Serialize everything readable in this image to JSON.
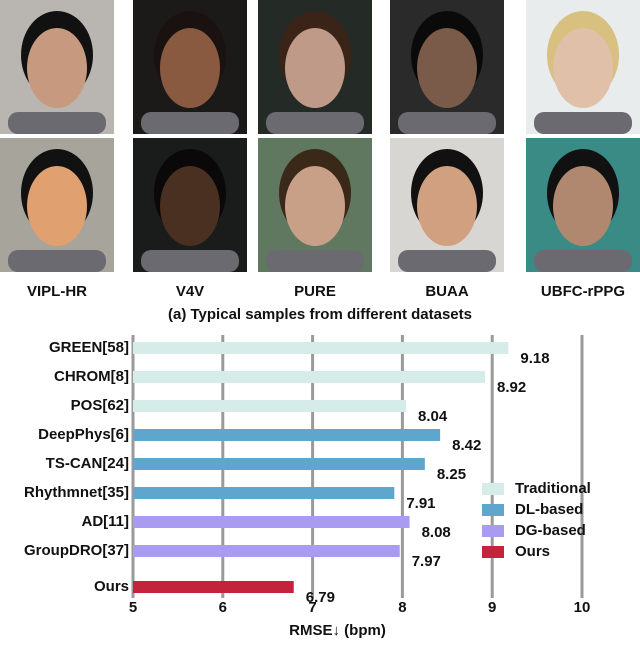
{
  "panel_a": {
    "datasets": [
      "VIPL-HR",
      "V4V",
      "PURE",
      "BUAA",
      "UBFC-rPPG"
    ],
    "caption": "(a) Typical samples from different datasets"
  },
  "chart_data": {
    "type": "barh",
    "categories": [
      "GREEN[58]",
      "CHROM[8]",
      "POS[62]",
      "DeepPhys[6]",
      "TS-CAN[24]",
      "Rhythmnet[35]",
      "AD[11]",
      "GroupDRO[37]",
      "Ours"
    ],
    "series": [
      {
        "name": "Traditional",
        "color": "#d5ece8",
        "values": [
          9.18,
          8.92,
          8.04,
          null,
          null,
          null,
          null,
          null,
          null
        ]
      },
      {
        "name": "DL-based",
        "color": "#5fa6cf",
        "values": [
          null,
          null,
          null,
          8.42,
          8.25,
          7.91,
          null,
          null,
          null
        ]
      },
      {
        "name": "DG-based",
        "color": "#a99bef",
        "values": [
          null,
          null,
          null,
          null,
          null,
          null,
          8.08,
          7.97,
          null
        ]
      },
      {
        "name": "Ours",
        "color": "#c3233b",
        "values": [
          null,
          null,
          null,
          null,
          null,
          null,
          null,
          null,
          6.79
        ]
      }
    ],
    "xlabel": "RMSE↓ (bpm)",
    "xlim": [
      5,
      10
    ],
    "xticks": [
      5,
      6,
      7,
      8,
      9,
      10
    ],
    "grid": true,
    "legend": "lower right"
  }
}
